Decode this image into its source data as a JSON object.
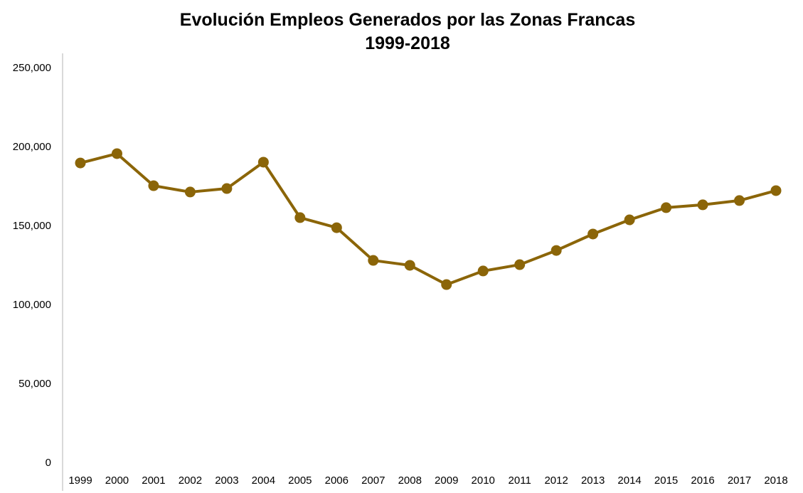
{
  "chart_data": {
    "type": "line",
    "title": "Evolución Empleos Generados por las Zonas Francas",
    "subtitle": "1999-2018",
    "xlabel": "",
    "ylabel": "",
    "categories": [
      "1999",
      "2000",
      "2001",
      "2002",
      "2003",
      "2004",
      "2005",
      "2006",
      "2007",
      "2008",
      "2009",
      "2010",
      "2011",
      "2012",
      "2013",
      "2014",
      "2015",
      "2016",
      "2017",
      "2018"
    ],
    "values": [
      189600,
      195500,
      175200,
      171200,
      173400,
      190100,
      155000,
      148600,
      127900,
      124800,
      112600,
      121200,
      125200,
      134200,
      144600,
      153600,
      161300,
      163100,
      165800,
      172100
    ],
    "ylim": [
      0,
      250000
    ],
    "yticks": [
      "0",
      "50,000",
      "100,000",
      "150,000",
      "200,000",
      "250,000"
    ],
    "grid": false,
    "legend": "none",
    "markers": true,
    "color": "#8B6508"
  }
}
